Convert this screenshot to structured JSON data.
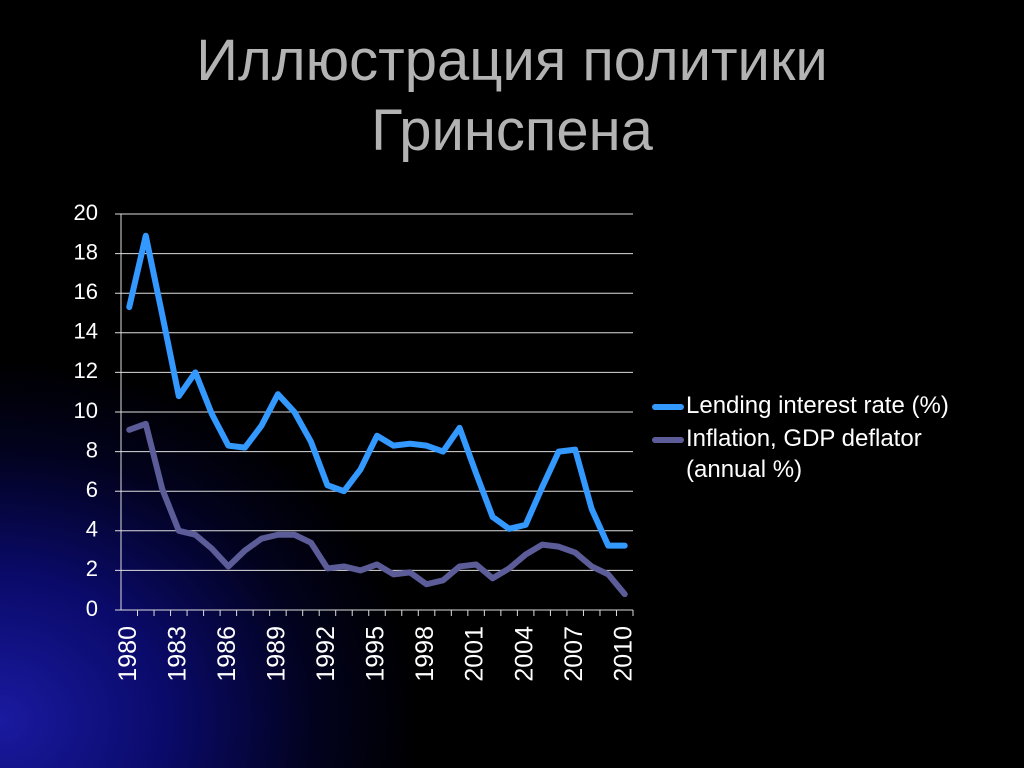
{
  "chart_data": {
    "type": "line",
    "title": "Иллюстрация политики Гринспена",
    "x": [
      1980,
      1981,
      1982,
      1983,
      1984,
      1985,
      1986,
      1987,
      1988,
      1989,
      1990,
      1991,
      1992,
      1993,
      1994,
      1995,
      1996,
      1997,
      1998,
      1999,
      2000,
      2001,
      2002,
      2003,
      2004,
      2005,
      2006,
      2007,
      2008,
      2009,
      2010
    ],
    "series": [
      {
        "name": "Lending interest rate (%)",
        "color": "#3399ff",
        "values": [
          15.3,
          18.9,
          14.9,
          10.8,
          12.0,
          9.9,
          8.3,
          8.2,
          9.3,
          10.9,
          10.0,
          8.5,
          6.3,
          6.0,
          7.1,
          8.8,
          8.3,
          8.4,
          8.3,
          8.0,
          9.2,
          6.9,
          4.7,
          4.1,
          4.3,
          6.2,
          8.0,
          8.1,
          5.1,
          3.25,
          3.25
        ]
      },
      {
        "name": "Inflation, GDP deflator (annual %)",
        "color": "#5c5c99",
        "values": [
          9.1,
          9.4,
          6.1,
          4.0,
          3.8,
          3.1,
          2.2,
          3.0,
          3.6,
          3.8,
          3.8,
          3.4,
          2.1,
          2.2,
          2.0,
          2.3,
          1.8,
          1.9,
          1.3,
          1.5,
          2.2,
          2.3,
          1.6,
          2.1,
          2.8,
          3.3,
          3.2,
          2.9,
          2.2,
          1.8,
          0.8
        ]
      }
    ],
    "xlim": [
      1979.5,
      2010.5
    ],
    "xticks": [
      1980,
      1983,
      1986,
      1989,
      1992,
      1995,
      1998,
      2001,
      2004,
      2007,
      2010
    ],
    "ylim": [
      0,
      20
    ],
    "yticks": [
      0,
      2,
      4,
      6,
      8,
      10,
      12,
      14,
      16,
      18,
      20
    ],
    "grid": true,
    "legend": "right"
  }
}
